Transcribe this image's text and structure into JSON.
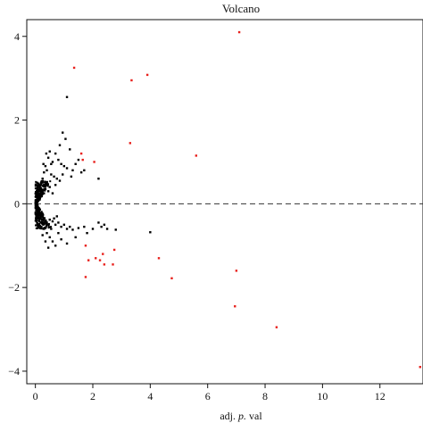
{
  "chart_data": {
    "type": "scatter",
    "title": "Volcano",
    "xlabel_prefix": "adj. ",
    "xlabel_italic": "p.",
    "xlabel_suffix": " val",
    "ylabel": "",
    "xlim": [
      -0.3,
      13.5
    ],
    "ylim": [
      -4.3,
      4.4
    ],
    "x_ticks": [
      0,
      2,
      4,
      6,
      8,
      10,
      12
    ],
    "y_ticks": [
      -4,
      -2,
      0,
      2,
      4
    ],
    "grid": false,
    "reference_line": {
      "y": 0,
      "style": "dashed",
      "color": "#333333"
    },
    "series": [
      {
        "color": "#000000",
        "points": [
          [
            1.1,
            2.55
          ],
          [
            0.95,
            1.7
          ],
          [
            1.05,
            1.55
          ],
          [
            0.85,
            1.4
          ],
          [
            1.2,
            1.3
          ],
          [
            1.5,
            1.05
          ],
          [
            0.7,
            1.2
          ],
          [
            0.5,
            1.25
          ],
          [
            0.45,
            1.1
          ],
          [
            0.6,
            1.0
          ],
          [
            0.8,
            1.05
          ],
          [
            0.9,
            0.95
          ],
          [
            1.0,
            0.9
          ],
          [
            1.1,
            0.85
          ],
          [
            1.3,
            0.8
          ],
          [
            1.6,
            0.75
          ],
          [
            2.2,
            0.6
          ],
          [
            0.35,
            0.9
          ],
          [
            0.4,
            0.8
          ],
          [
            0.3,
            0.75
          ],
          [
            0.55,
            0.7
          ],
          [
            0.65,
            0.65
          ],
          [
            0.75,
            0.6
          ],
          [
            0.25,
            0.6
          ],
          [
            0.2,
            0.5
          ],
          [
            0.3,
            0.45
          ],
          [
            0.4,
            0.5
          ],
          [
            0.5,
            0.4
          ],
          [
            0.15,
            0.4
          ],
          [
            0.1,
            0.3
          ],
          [
            0.2,
            0.3
          ],
          [
            0.3,
            0.25
          ],
          [
            0.05,
            0.2
          ],
          [
            0.1,
            0.15
          ],
          [
            0.15,
            0.1
          ],
          [
            0.02,
            0.08
          ],
          [
            0.05,
            0.05
          ],
          [
            0.08,
            0.12
          ],
          [
            0.12,
            0.22
          ],
          [
            0.22,
            0.18
          ],
          [
            0.35,
            0.35
          ],
          [
            0.45,
            0.3
          ],
          [
            0.6,
            0.25
          ],
          [
            0.7,
            0.45
          ],
          [
            0.85,
            0.55
          ],
          [
            1.4,
            0.95
          ],
          [
            1.7,
            0.8
          ],
          [
            1.25,
            0.65
          ],
          [
            0.95,
            0.7
          ],
          [
            0.55,
            0.95
          ],
          [
            0.38,
            1.2
          ],
          [
            0.28,
            0.95
          ],
          [
            0.05,
            -0.05
          ],
          [
            0.08,
            -0.1
          ],
          [
            0.12,
            -0.15
          ],
          [
            0.15,
            -0.22
          ],
          [
            0.2,
            -0.3
          ],
          [
            0.25,
            -0.25
          ],
          [
            0.3,
            -0.35
          ],
          [
            0.35,
            -0.4
          ],
          [
            0.4,
            -0.45
          ],
          [
            0.5,
            -0.38
          ],
          [
            0.6,
            -0.42
          ],
          [
            0.7,
            -0.5
          ],
          [
            0.8,
            -0.45
          ],
          [
            0.9,
            -0.55
          ],
          [
            1.0,
            -0.5
          ],
          [
            1.1,
            -0.6
          ],
          [
            1.2,
            -0.55
          ],
          [
            1.3,
            -0.62
          ],
          [
            1.5,
            -0.58
          ],
          [
            1.7,
            -0.55
          ],
          [
            2.0,
            -0.6
          ],
          [
            2.3,
            -0.55
          ],
          [
            2.5,
            -0.6
          ],
          [
            2.8,
            -0.62
          ],
          [
            4.0,
            -0.68
          ],
          [
            0.3,
            -0.6
          ],
          [
            0.4,
            -0.7
          ],
          [
            0.5,
            -0.8
          ],
          [
            0.6,
            -0.9
          ],
          [
            0.7,
            -1.0
          ],
          [
            0.9,
            -0.85
          ],
          [
            1.1,
            -0.95
          ],
          [
            0.45,
            -1.05
          ],
          [
            0.35,
            -0.9
          ],
          [
            0.25,
            -0.75
          ],
          [
            2.2,
            -0.45
          ],
          [
            2.4,
            -0.5
          ],
          [
            1.8,
            -0.7
          ],
          [
            1.4,
            -0.8
          ],
          [
            0.8,
            -0.7
          ],
          [
            0.55,
            -0.6
          ],
          [
            0.65,
            -0.35
          ],
          [
            0.75,
            -0.3
          ],
          [
            0.18,
            -0.45
          ],
          [
            0.1,
            -0.35
          ]
        ]
      },
      {
        "color": "#e8201c",
        "points": [
          [
            7.1,
            4.1
          ],
          [
            1.35,
            3.25
          ],
          [
            3.9,
            3.08
          ],
          [
            3.35,
            2.95
          ],
          [
            3.3,
            1.45
          ],
          [
            5.6,
            1.15
          ],
          [
            1.6,
            1.2
          ],
          [
            1.65,
            1.05
          ],
          [
            2.05,
            1.0
          ],
          [
            1.75,
            -1.0
          ],
          [
            1.85,
            -1.35
          ],
          [
            2.1,
            -1.3
          ],
          [
            2.25,
            -1.35
          ],
          [
            2.4,
            -1.45
          ],
          [
            2.75,
            -1.1
          ],
          [
            2.7,
            -1.45
          ],
          [
            2.35,
            -1.2
          ],
          [
            4.3,
            -1.3
          ],
          [
            4.75,
            -1.78
          ],
          [
            1.75,
            -1.75
          ],
          [
            7.0,
            -1.6
          ],
          [
            6.95,
            -2.45
          ],
          [
            8.4,
            -2.95
          ],
          [
            13.4,
            -3.9
          ]
        ]
      }
    ],
    "dense_cluster": {
      "color": "#000000",
      "count": 420,
      "x_range": [
        0.0,
        0.55
      ],
      "y_range": [
        -0.6,
        0.55
      ]
    }
  }
}
